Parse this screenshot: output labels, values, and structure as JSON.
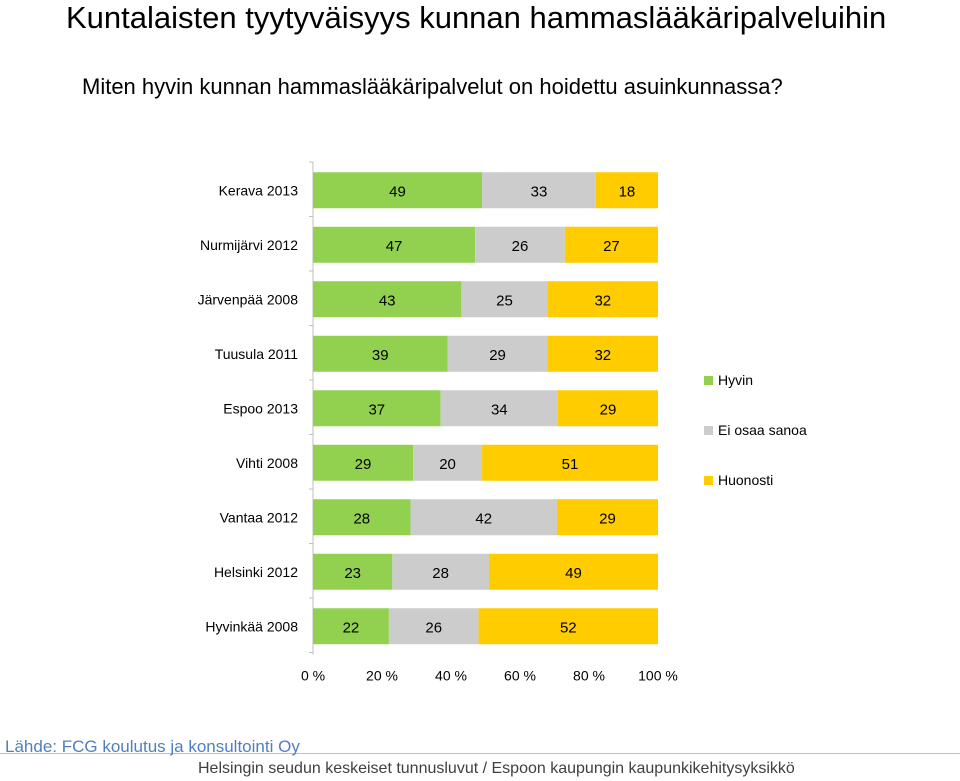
{
  "title": "Kuntalaisten tyytyväisyys kunnan hammaslääkäripalveluihin",
  "subtitle": "Miten hyvin kunnan hammaslääkäripalvelut on hoidettu asuinkunnassa?",
  "source": "Lähde: FCG koulutus ja konsultointi Oy",
  "footer": "Helsingin seudun keskeiset tunnusluvut / Espoon kaupungin kaupunkikehitysyksikkö",
  "colors": {
    "hyvin": "#92d050",
    "ei_osaa": "#cccccc",
    "huonosti": "#ffcc00"
  },
  "chart_data": {
    "type": "bar",
    "orientation": "horizontal",
    "stacked": "percent",
    "categories": [
      "Kerava 2013",
      "Nurmijärvi 2012",
      "Järvenpää 2008",
      "Tuusula 2011",
      "Espoo 2013",
      "Vihti 2008",
      "Vantaa 2012",
      "Helsinki 2012",
      "Hyvinkää 2008"
    ],
    "series": [
      {
        "name": "Hyvin",
        "values": [
          49,
          47,
          43,
          39,
          37,
          29,
          28,
          23,
          22
        ]
      },
      {
        "name": "Ei osaa sanoa",
        "values": [
          33,
          26,
          25,
          29,
          34,
          20,
          42,
          28,
          26
        ]
      },
      {
        "name": "Huonosti",
        "values": [
          18,
          27,
          32,
          32,
          29,
          51,
          29,
          49,
          52
        ]
      }
    ],
    "xticks": [
      "0 %",
      "20 %",
      "40 %",
      "60 %",
      "80 %",
      "100 %"
    ],
    "xlim": [
      0,
      100
    ],
    "legend_position": "right"
  }
}
